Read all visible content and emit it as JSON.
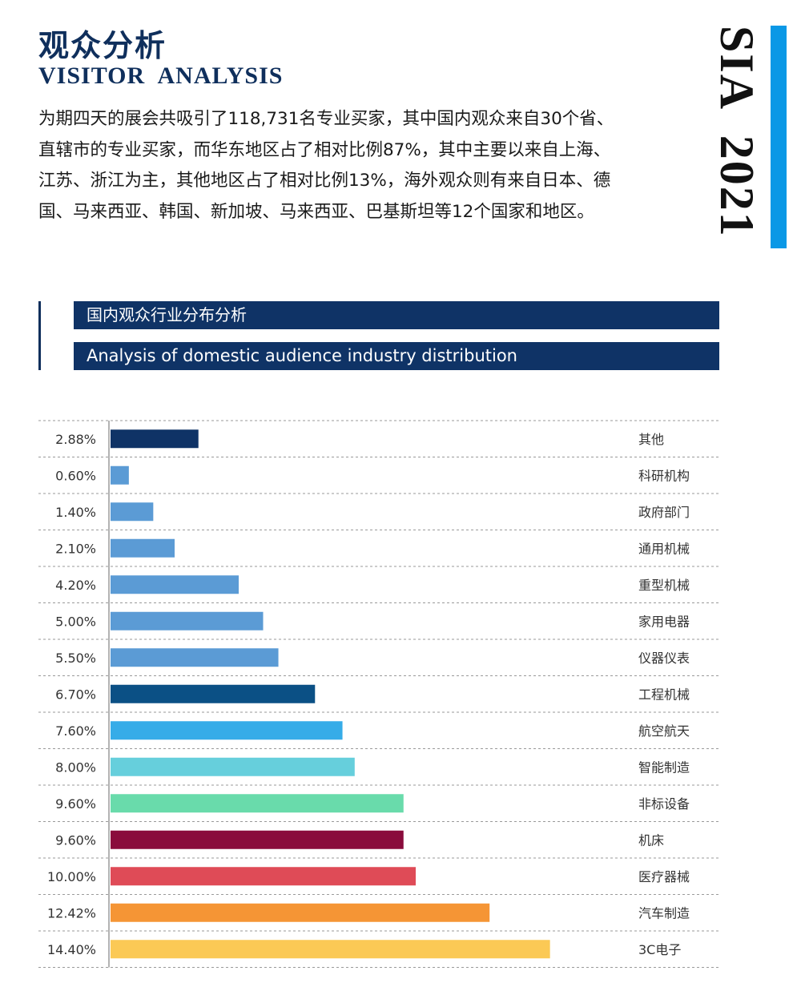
{
  "header": {
    "title_cn": "观众分析",
    "title_en": "VISITOR  ANALYSIS",
    "side_label": "SIA  2021",
    "accent_color": "#0a98e6"
  },
  "intro": {
    "text": "为期四天的展会共吸引了118,731名专业买家，其中国内观众来自30个省、直辖市的专业买家，而华东地区占了相对比例87%，其中主要以来自上海、江苏、浙江为主，其他地区占了相对比例13%，海外观众则有来自日本、德国、马来西亚、韩国、新加坡、马来西亚、巴基斯坦等12个国家和地区。"
  },
  "section": {
    "title_cn": "国内观众行业分布分析",
    "title_en": "Analysis of domestic audience industry distribution",
    "banner_color": "#0f3366"
  },
  "chart_data": {
    "type": "bar",
    "orientation": "horizontal",
    "unit": "%",
    "grid": true,
    "xlim": [
      0,
      20
    ],
    "categories": [
      "其他",
      "科研机构",
      "政府部门",
      "通用机械",
      "重型机械",
      "家用电器",
      "仪器仪表",
      "工程机械",
      "航空航天",
      "智能制造",
      "非标设备",
      "机床",
      "医疗器械",
      "汽车制造",
      "3C电子"
    ],
    "values": [
      2.88,
      0.6,
      1.4,
      2.1,
      4.2,
      5.0,
      5.5,
      6.7,
      7.6,
      8.0,
      9.6,
      9.6,
      10.0,
      12.42,
      14.4
    ],
    "value_labels": [
      "2.88%",
      "0.60%",
      "1.40%",
      "2.10%",
      "4.20%",
      "5.00%",
      "5.50%",
      "6.70%",
      "7.60%",
      "8.00%",
      "9.60%",
      "9.60%",
      "10.00%",
      "12.42%",
      "14.40%"
    ],
    "colors": [
      "#0f3366",
      "#5b9bd5",
      "#5b9bd5",
      "#5b9bd5",
      "#5b9bd5",
      "#5b9bd5",
      "#5b9bd5",
      "#0b5085",
      "#36ace8",
      "#66cfdc",
      "#69dbab",
      "#8a0c3c",
      "#df4b57",
      "#f59535",
      "#fbc955"
    ]
  }
}
